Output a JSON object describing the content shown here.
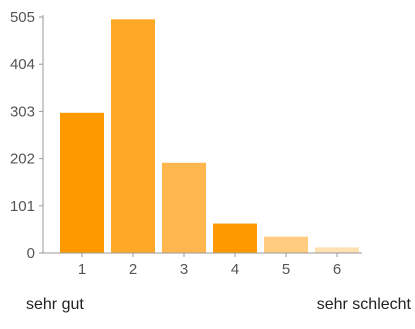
{
  "chart_data": {
    "type": "bar",
    "categories": [
      "1",
      "2",
      "3",
      "4",
      "5",
      "6"
    ],
    "values": [
      300,
      500,
      193,
      63,
      35,
      12
    ],
    "y_ticks": [
      0,
      101,
      202,
      303,
      404,
      505
    ],
    "ylim": [
      0,
      505
    ],
    "colors": [
      "#FF9900",
      "#FFA726",
      "#FFB74D",
      "#FF9900",
      "#FFCC80",
      "#FFE0B2"
    ],
    "grid": false,
    "legend": "none"
  },
  "scale_labels": {
    "left": "sehr gut",
    "right": "sehr schlecht"
  }
}
